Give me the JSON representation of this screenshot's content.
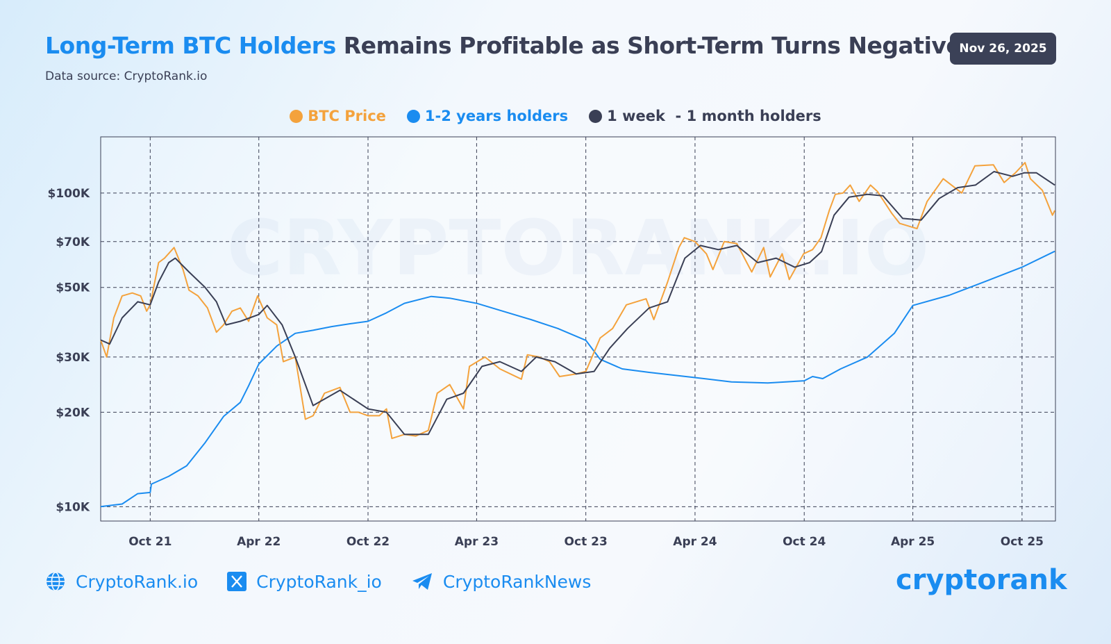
{
  "header": {
    "title_highlight": "Long-Term BTC Holders",
    "title_rest": " Remains Profitable as Short-Term Turns Negative",
    "source": "Data source: CryptoRank.io",
    "date_badge": "Nov 26, 2025"
  },
  "footer": {
    "website": "CryptoRank.io",
    "x_handle": "CryptoRank_io",
    "telegram": "CryptoRankNews",
    "logo": "cryptorank",
    "icons": [
      "globe-icon",
      "x-logo-icon",
      "telegram-icon"
    ]
  },
  "watermark": "CRYPTORANK.IO",
  "colors": {
    "btc": "#f4a23c",
    "longterm": "#1a8cf0",
    "shortterm": "#3a3f55",
    "accent": "#1a8cf0"
  },
  "chart_data": {
    "type": "line",
    "title": "Long-Term BTC Holders Remains Profitable as Short-Term Turns Negative",
    "y_scale": "log",
    "ylim": [
      9000,
      151000
    ],
    "xlim": [
      "2021-07-10",
      "2025-11-26"
    ],
    "grid": true,
    "legend_placement": "top-center",
    "y_ticks": [
      {
        "v": 10000,
        "label": "$10K"
      },
      {
        "v": 20000,
        "label": "$20K"
      },
      {
        "v": 30000,
        "label": "$30K"
      },
      {
        "v": 50000,
        "label": "$50K"
      },
      {
        "v": 70000,
        "label": "$70K"
      },
      {
        "v": 100000,
        "label": "$100K"
      }
    ],
    "x_ticks": [
      {
        "d": "2021-10-01",
        "label": "Oct 21"
      },
      {
        "d": "2022-04-01",
        "label": "Apr 22"
      },
      {
        "d": "2022-10-01",
        "label": "Oct 22"
      },
      {
        "d": "2023-04-01",
        "label": "Apr 23"
      },
      {
        "d": "2023-10-01",
        "label": "Oct 23"
      },
      {
        "d": "2024-04-01",
        "label": "Apr 24"
      },
      {
        "d": "2024-10-01",
        "label": "Oct 24"
      },
      {
        "d": "2025-04-01",
        "label": "Apr 25"
      },
      {
        "d": "2025-10-01",
        "label": "Oct 25"
      }
    ],
    "series": [
      {
        "name": "BTC Price",
        "color": "#f4a23c",
        "points": [
          [
            "2021-07-10",
            34000
          ],
          [
            "2021-07-20",
            30000
          ],
          [
            "2021-08-01",
            40000
          ],
          [
            "2021-08-15",
            47000
          ],
          [
            "2021-09-01",
            48000
          ],
          [
            "2021-09-15",
            47000
          ],
          [
            "2021-09-25",
            42000
          ],
          [
            "2021-10-01",
            44000
          ],
          [
            "2021-10-15",
            60000
          ],
          [
            "2021-10-25",
            62000
          ],
          [
            "2021-11-10",
            67000
          ],
          [
            "2021-11-25",
            57000
          ],
          [
            "2021-12-05",
            49000
          ],
          [
            "2021-12-20",
            47000
          ],
          [
            "2022-01-05",
            43000
          ],
          [
            "2022-01-20",
            36000
          ],
          [
            "2022-02-01",
            38000
          ],
          [
            "2022-02-15",
            42000
          ],
          [
            "2022-03-01",
            43000
          ],
          [
            "2022-03-15",
            39000
          ],
          [
            "2022-03-30",
            47000
          ],
          [
            "2022-04-15",
            40000
          ],
          [
            "2022-05-01",
            38000
          ],
          [
            "2022-05-12",
            29000
          ],
          [
            "2022-06-01",
            30000
          ],
          [
            "2022-06-18",
            19000
          ],
          [
            "2022-07-01",
            19500
          ],
          [
            "2022-07-20",
            23000
          ],
          [
            "2022-08-15",
            24000
          ],
          [
            "2022-09-01",
            20000
          ],
          [
            "2022-09-15",
            20000
          ],
          [
            "2022-10-01",
            19500
          ],
          [
            "2022-10-20",
            19500
          ],
          [
            "2022-11-01",
            20500
          ],
          [
            "2022-11-10",
            16500
          ],
          [
            "2022-12-01",
            17000
          ],
          [
            "2022-12-20",
            16800
          ],
          [
            "2023-01-10",
            17500
          ],
          [
            "2023-01-25",
            23000
          ],
          [
            "2023-02-15",
            24500
          ],
          [
            "2023-03-10",
            20500
          ],
          [
            "2023-03-20",
            28000
          ],
          [
            "2023-04-15",
            30000
          ],
          [
            "2023-05-10",
            27500
          ],
          [
            "2023-06-15",
            25500
          ],
          [
            "2023-06-25",
            30500
          ],
          [
            "2023-07-15",
            30000
          ],
          [
            "2023-08-01",
            29000
          ],
          [
            "2023-08-18",
            26000
          ],
          [
            "2023-09-15",
            26500
          ],
          [
            "2023-10-01",
            27000
          ],
          [
            "2023-10-25",
            34500
          ],
          [
            "2023-11-15",
            37000
          ],
          [
            "2023-12-08",
            44000
          ],
          [
            "2024-01-10",
            46000
          ],
          [
            "2024-01-23",
            39500
          ],
          [
            "2024-02-15",
            52000
          ],
          [
            "2024-03-05",
            67000
          ],
          [
            "2024-03-14",
            72000
          ],
          [
            "2024-04-01",
            70000
          ],
          [
            "2024-04-20",
            64000
          ],
          [
            "2024-05-01",
            57000
          ],
          [
            "2024-05-20",
            70000
          ],
          [
            "2024-06-10",
            69000
          ],
          [
            "2024-07-05",
            56000
          ],
          [
            "2024-07-25",
            67000
          ],
          [
            "2024-08-05",
            54000
          ],
          [
            "2024-08-25",
            64000
          ],
          [
            "2024-09-06",
            53000
          ],
          [
            "2024-09-30",
            64000
          ],
          [
            "2024-10-15",
            66000
          ],
          [
            "2024-10-29",
            72000
          ],
          [
            "2024-11-12",
            88000
          ],
          [
            "2024-11-22",
            99000
          ],
          [
            "2024-12-05",
            100000
          ],
          [
            "2024-12-17",
            106000
          ],
          [
            "2025-01-01",
            94000
          ],
          [
            "2025-01-20",
            106000
          ],
          [
            "2025-02-01",
            101000
          ],
          [
            "2025-02-25",
            86000
          ],
          [
            "2025-03-10",
            80000
          ],
          [
            "2025-04-08",
            77000
          ],
          [
            "2025-04-25",
            94000
          ],
          [
            "2025-05-22",
            111000
          ],
          [
            "2025-06-22",
            100000
          ],
          [
            "2025-07-14",
            122000
          ],
          [
            "2025-08-14",
            123000
          ],
          [
            "2025-09-01",
            108000
          ],
          [
            "2025-09-20",
            116000
          ],
          [
            "2025-10-06",
            125000
          ],
          [
            "2025-10-15",
            111000
          ],
          [
            "2025-11-04",
            102000
          ],
          [
            "2025-11-21",
            85000
          ],
          [
            "2025-11-25",
            88000
          ]
        ]
      },
      {
        "name": "1-2 years holders",
        "color": "#1a8cf0",
        "points": [
          [
            "2021-07-10",
            10000
          ],
          [
            "2021-08-15",
            10200
          ],
          [
            "2021-09-10",
            11000
          ],
          [
            "2021-10-01",
            11100
          ],
          [
            "2021-10-03",
            11800
          ],
          [
            "2021-11-01",
            12500
          ],
          [
            "2021-12-01",
            13500
          ],
          [
            "2022-01-01",
            16000
          ],
          [
            "2022-02-01",
            19400
          ],
          [
            "2022-03-01",
            21500
          ],
          [
            "2022-03-15",
            24300
          ],
          [
            "2022-04-01",
            28500
          ],
          [
            "2022-05-01",
            32500
          ],
          [
            "2022-06-01",
            35700
          ],
          [
            "2022-07-01",
            36500
          ],
          [
            "2022-08-01",
            37500
          ],
          [
            "2022-09-01",
            38300
          ],
          [
            "2022-10-01",
            39000
          ],
          [
            "2022-11-01",
            41500
          ],
          [
            "2022-12-01",
            44500
          ],
          [
            "2023-01-15",
            46800
          ],
          [
            "2023-02-15",
            46200
          ],
          [
            "2023-04-01",
            44500
          ],
          [
            "2023-05-15",
            42000
          ],
          [
            "2023-07-01",
            39500
          ],
          [
            "2023-08-15",
            37000
          ],
          [
            "2023-10-01",
            33900
          ],
          [
            "2023-10-25",
            29500
          ],
          [
            "2023-12-01",
            27500
          ],
          [
            "2024-01-15",
            26800
          ],
          [
            "2024-04-01",
            25800
          ],
          [
            "2024-06-01",
            25000
          ],
          [
            "2024-08-01",
            24800
          ],
          [
            "2024-10-01",
            25200
          ],
          [
            "2024-10-15",
            26000
          ],
          [
            "2024-11-01",
            25600
          ],
          [
            "2024-12-01",
            27500
          ],
          [
            "2025-01-15",
            30000
          ],
          [
            "2025-03-01",
            35700
          ],
          [
            "2025-04-01",
            43800
          ],
          [
            "2025-06-01",
            47200
          ],
          [
            "2025-08-01",
            52300
          ],
          [
            "2025-10-01",
            58000
          ],
          [
            "2025-11-25",
            65200
          ]
        ]
      },
      {
        "name": "1 week  - 1 month holders",
        "color": "#3a3f55",
        "points": [
          [
            "2021-07-10",
            34000
          ],
          [
            "2021-07-25",
            33000
          ],
          [
            "2021-08-15",
            40000
          ],
          [
            "2021-09-10",
            45000
          ],
          [
            "2021-10-01",
            44000
          ],
          [
            "2021-10-15",
            52000
          ],
          [
            "2021-11-01",
            60000
          ],
          [
            "2021-11-12",
            62000
          ],
          [
            "2021-12-05",
            56000
          ],
          [
            "2022-01-01",
            50000
          ],
          [
            "2022-01-20",
            45000
          ],
          [
            "2022-02-05",
            38000
          ],
          [
            "2022-03-01",
            39000
          ],
          [
            "2022-04-01",
            41000
          ],
          [
            "2022-04-15",
            43800
          ],
          [
            "2022-05-10",
            38000
          ],
          [
            "2022-06-01",
            30000
          ],
          [
            "2022-07-01",
            21000
          ],
          [
            "2022-08-15",
            23500
          ],
          [
            "2022-10-01",
            20500
          ],
          [
            "2022-11-01",
            20000
          ],
          [
            "2022-12-01",
            17000
          ],
          [
            "2023-01-10",
            17000
          ],
          [
            "2023-02-10",
            22000
          ],
          [
            "2023-03-10",
            23000
          ],
          [
            "2023-04-10",
            28000
          ],
          [
            "2023-05-10",
            29000
          ],
          [
            "2023-06-15",
            27000
          ],
          [
            "2023-07-10",
            30000
          ],
          [
            "2023-08-10",
            29000
          ],
          [
            "2023-09-15",
            26500
          ],
          [
            "2023-10-15",
            27000
          ],
          [
            "2023-11-10",
            32000
          ],
          [
            "2023-12-10",
            37000
          ],
          [
            "2024-01-15",
            43000
          ],
          [
            "2024-02-15",
            45000
          ],
          [
            "2024-03-15",
            62000
          ],
          [
            "2024-04-10",
            68000
          ],
          [
            "2024-05-10",
            66000
          ],
          [
            "2024-06-10",
            68000
          ],
          [
            "2024-07-15",
            60000
          ],
          [
            "2024-08-15",
            62000
          ],
          [
            "2024-09-15",
            58000
          ],
          [
            "2024-10-10",
            60000
          ],
          [
            "2024-10-30",
            65000
          ],
          [
            "2024-11-20",
            85000
          ],
          [
            "2024-12-15",
            97000
          ],
          [
            "2025-01-15",
            99000
          ],
          [
            "2025-02-10",
            98000
          ],
          [
            "2025-03-15",
            83000
          ],
          [
            "2025-04-15",
            82000
          ],
          [
            "2025-05-15",
            96000
          ],
          [
            "2025-06-15",
            104000
          ],
          [
            "2025-07-15",
            106000
          ],
          [
            "2025-08-15",
            117000
          ],
          [
            "2025-09-15",
            113000
          ],
          [
            "2025-10-05",
            116000
          ],
          [
            "2025-10-25",
            116000
          ],
          [
            "2025-11-25",
            106000
          ]
        ]
      }
    ]
  }
}
